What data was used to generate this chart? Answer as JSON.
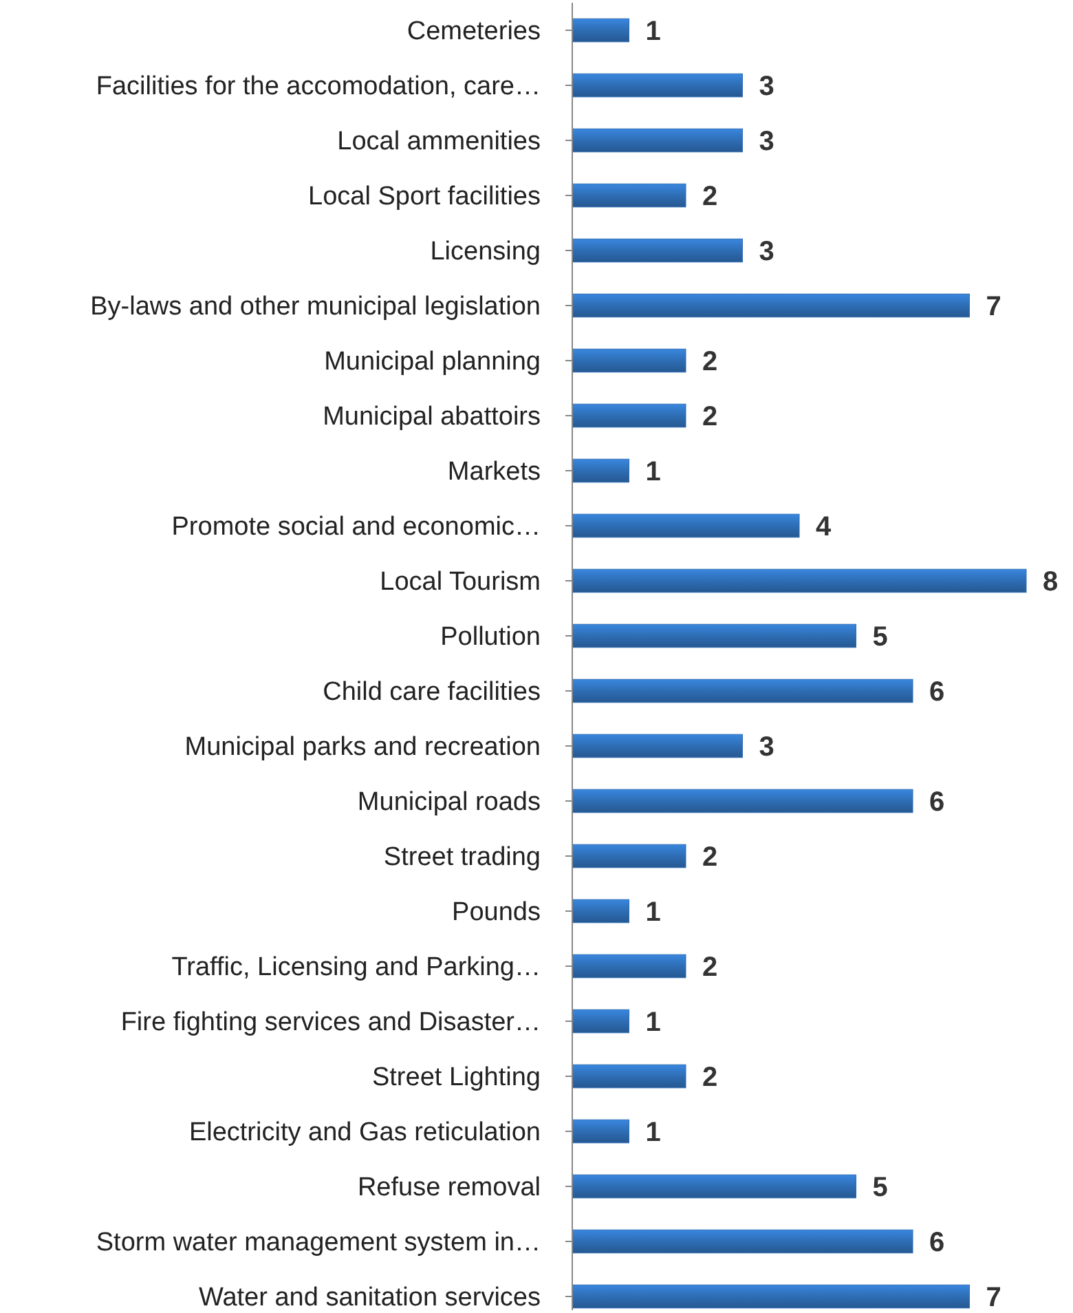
{
  "chart_data": {
    "type": "bar",
    "orientation": "horizontal",
    "data_labels": true,
    "color": "#2e6db4",
    "categories": [
      "Cemeteries",
      "Facilities for the accomodation, care…",
      "Local ammenities",
      "Local Sport facilities",
      "Licensing",
      "By-laws and other municipal legislation",
      "Municipal planning",
      "Municipal abattoirs",
      "Markets",
      "Promote social and economic…",
      "Local Tourism",
      "Pollution",
      "Child care facilities",
      "Municipal parks and recreation",
      "Municipal roads",
      "Street trading",
      "Pounds",
      "Traffic, Licensing and Parking…",
      "Fire fighting services and Disaster…",
      "Street Lighting",
      "Electricity and Gas reticulation",
      "Refuse removal",
      "Storm water management system in…",
      "Water and sanitation services"
    ],
    "values": [
      1,
      3,
      3,
      2,
      3,
      7,
      2,
      2,
      1,
      4,
      8,
      5,
      6,
      3,
      6,
      2,
      1,
      2,
      1,
      2,
      1,
      5,
      6,
      7
    ]
  }
}
